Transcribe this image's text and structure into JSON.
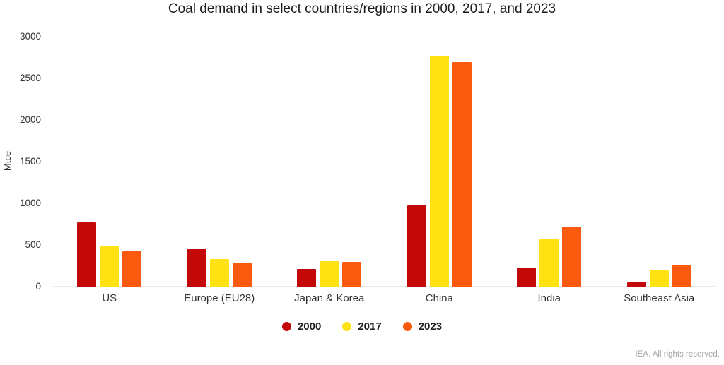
{
  "title": "Coal demand in select countries/regions in 2000, 2017, and 2023",
  "footer": "IEA. All rights reserved.",
  "colors": {
    "series_2000": "#c20808",
    "series_2017": "#ffe212",
    "series_2023": "#fa5a0d",
    "axis_text": "#333333",
    "title_text": "#1c1c1c",
    "footer_text": "#a6a6a6",
    "baseline": "#e9e9e9"
  },
  "chart_data": {
    "type": "bar",
    "title": "Coal demand in select countries/regions in 2000, 2017, and 2023",
    "xlabel": "",
    "ylabel": "Mtce",
    "unit": "Mtce",
    "ylim": [
      0,
      3000
    ],
    "yticks": [
      0,
      500,
      1000,
      1500,
      2000,
      2500,
      3000
    ],
    "grid": false,
    "legend_position": "bottom",
    "categories": [
      "US",
      "Europe (EU28)",
      "Japan & Korea",
      "China",
      "India",
      "Southeast Asia"
    ],
    "series": [
      {
        "name": "2000",
        "color": "#c20808",
        "values": [
          770,
          460,
          210,
          975,
          230,
          50
        ]
      },
      {
        "name": "2017",
        "color": "#ffe212",
        "values": [
          485,
          330,
          305,
          2770,
          565,
          195
        ]
      },
      {
        "name": "2023",
        "color": "#fa5a0d",
        "values": [
          425,
          290,
          295,
          2695,
          720,
          265
        ]
      }
    ]
  }
}
